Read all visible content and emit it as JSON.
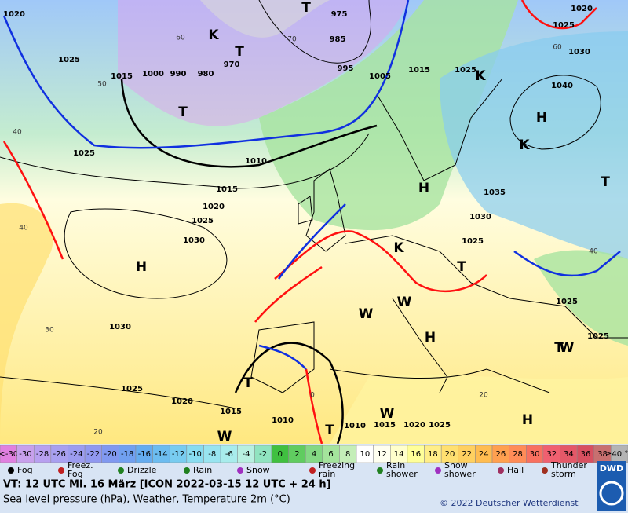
{
  "map": {
    "pressure_labels": [
      "1020",
      "1025",
      "1015",
      "1000",
      "990",
      "980",
      "970",
      "975",
      "985",
      "995",
      "1005",
      "1015",
      "1025",
      "1020",
      "1025",
      "1030",
      "1040",
      "1025",
      "1010",
      "1015",
      "1020",
      "1025",
      "1030",
      "1030",
      "1035",
      "1030",
      "1025",
      "1025",
      "1025",
      "1025",
      "1020",
      "1015",
      "1010",
      "1010",
      "1015",
      "1020",
      "1025"
    ],
    "isotherm_labels": [
      "40",
      "40",
      "30",
      "20",
      "50",
      "60",
      "70",
      "60",
      "40",
      "20",
      "0"
    ],
    "centers": [
      "H",
      "H",
      "H",
      "H",
      "H",
      "T",
      "T",
      "T",
      "T",
      "T",
      "T",
      "T",
      "T",
      "K",
      "K",
      "K",
      "K",
      "W",
      "W",
      "W",
      "W",
      "W"
    ]
  },
  "legend": {
    "temperature_scale": {
      "below": "<-30",
      "below_color": "#e080e0",
      "values": [
        -30,
        -28,
        -26,
        -24,
        -22,
        -20,
        -18,
        -16,
        -14,
        -12,
        -10,
        -8,
        -6,
        -4,
        -2,
        0,
        2,
        4,
        6,
        8,
        10,
        12,
        14,
        16,
        18,
        20,
        22,
        24,
        26,
        28,
        30,
        32,
        34,
        36,
        38
      ],
      "colors": [
        "#c8a0ec",
        "#b8a0f0",
        "#a8a0f0",
        "#9c9cf0",
        "#9098f0",
        "#8098f0",
        "#70a0f0",
        "#64acf0",
        "#6cbcf0",
        "#78ccf0",
        "#88dcf0",
        "#98e4f0",
        "#a8ecec",
        "#b8f0e0",
        "#90e4c0",
        "#40c040",
        "#60cc60",
        "#84d884",
        "#a4e49c",
        "#c4eeb8",
        "#ffffff",
        "#fffff0",
        "#ffffcc",
        "#ffff99",
        "#ffee88",
        "#ffe070",
        "#ffd060",
        "#ffbc50",
        "#ffa050",
        "#ff8c58",
        "#f87060",
        "#f06070",
        "#e45868",
        "#d85060",
        "#c87070"
      ],
      "above": "≥40 °C",
      "above_color": "#b4b4b4"
    },
    "symbols": [
      "Fog",
      "Freez. Fog",
      "Drizzle",
      "Rain",
      "Snow",
      "Freezing rain",
      "Rain shower",
      "Snow shower",
      "Hail",
      "Thunder storm"
    ]
  },
  "footer": {
    "valid_time": "VT: 12 UTC Mi.  16 März [ICON 2022-03-15  12 UTC + 24 h]",
    "description": "Sea level pressure (hPa), Weather, Temperature 2m (°C)",
    "copyright": "© 2022 Deutscher Wetterdienst",
    "logo": "DWD"
  }
}
